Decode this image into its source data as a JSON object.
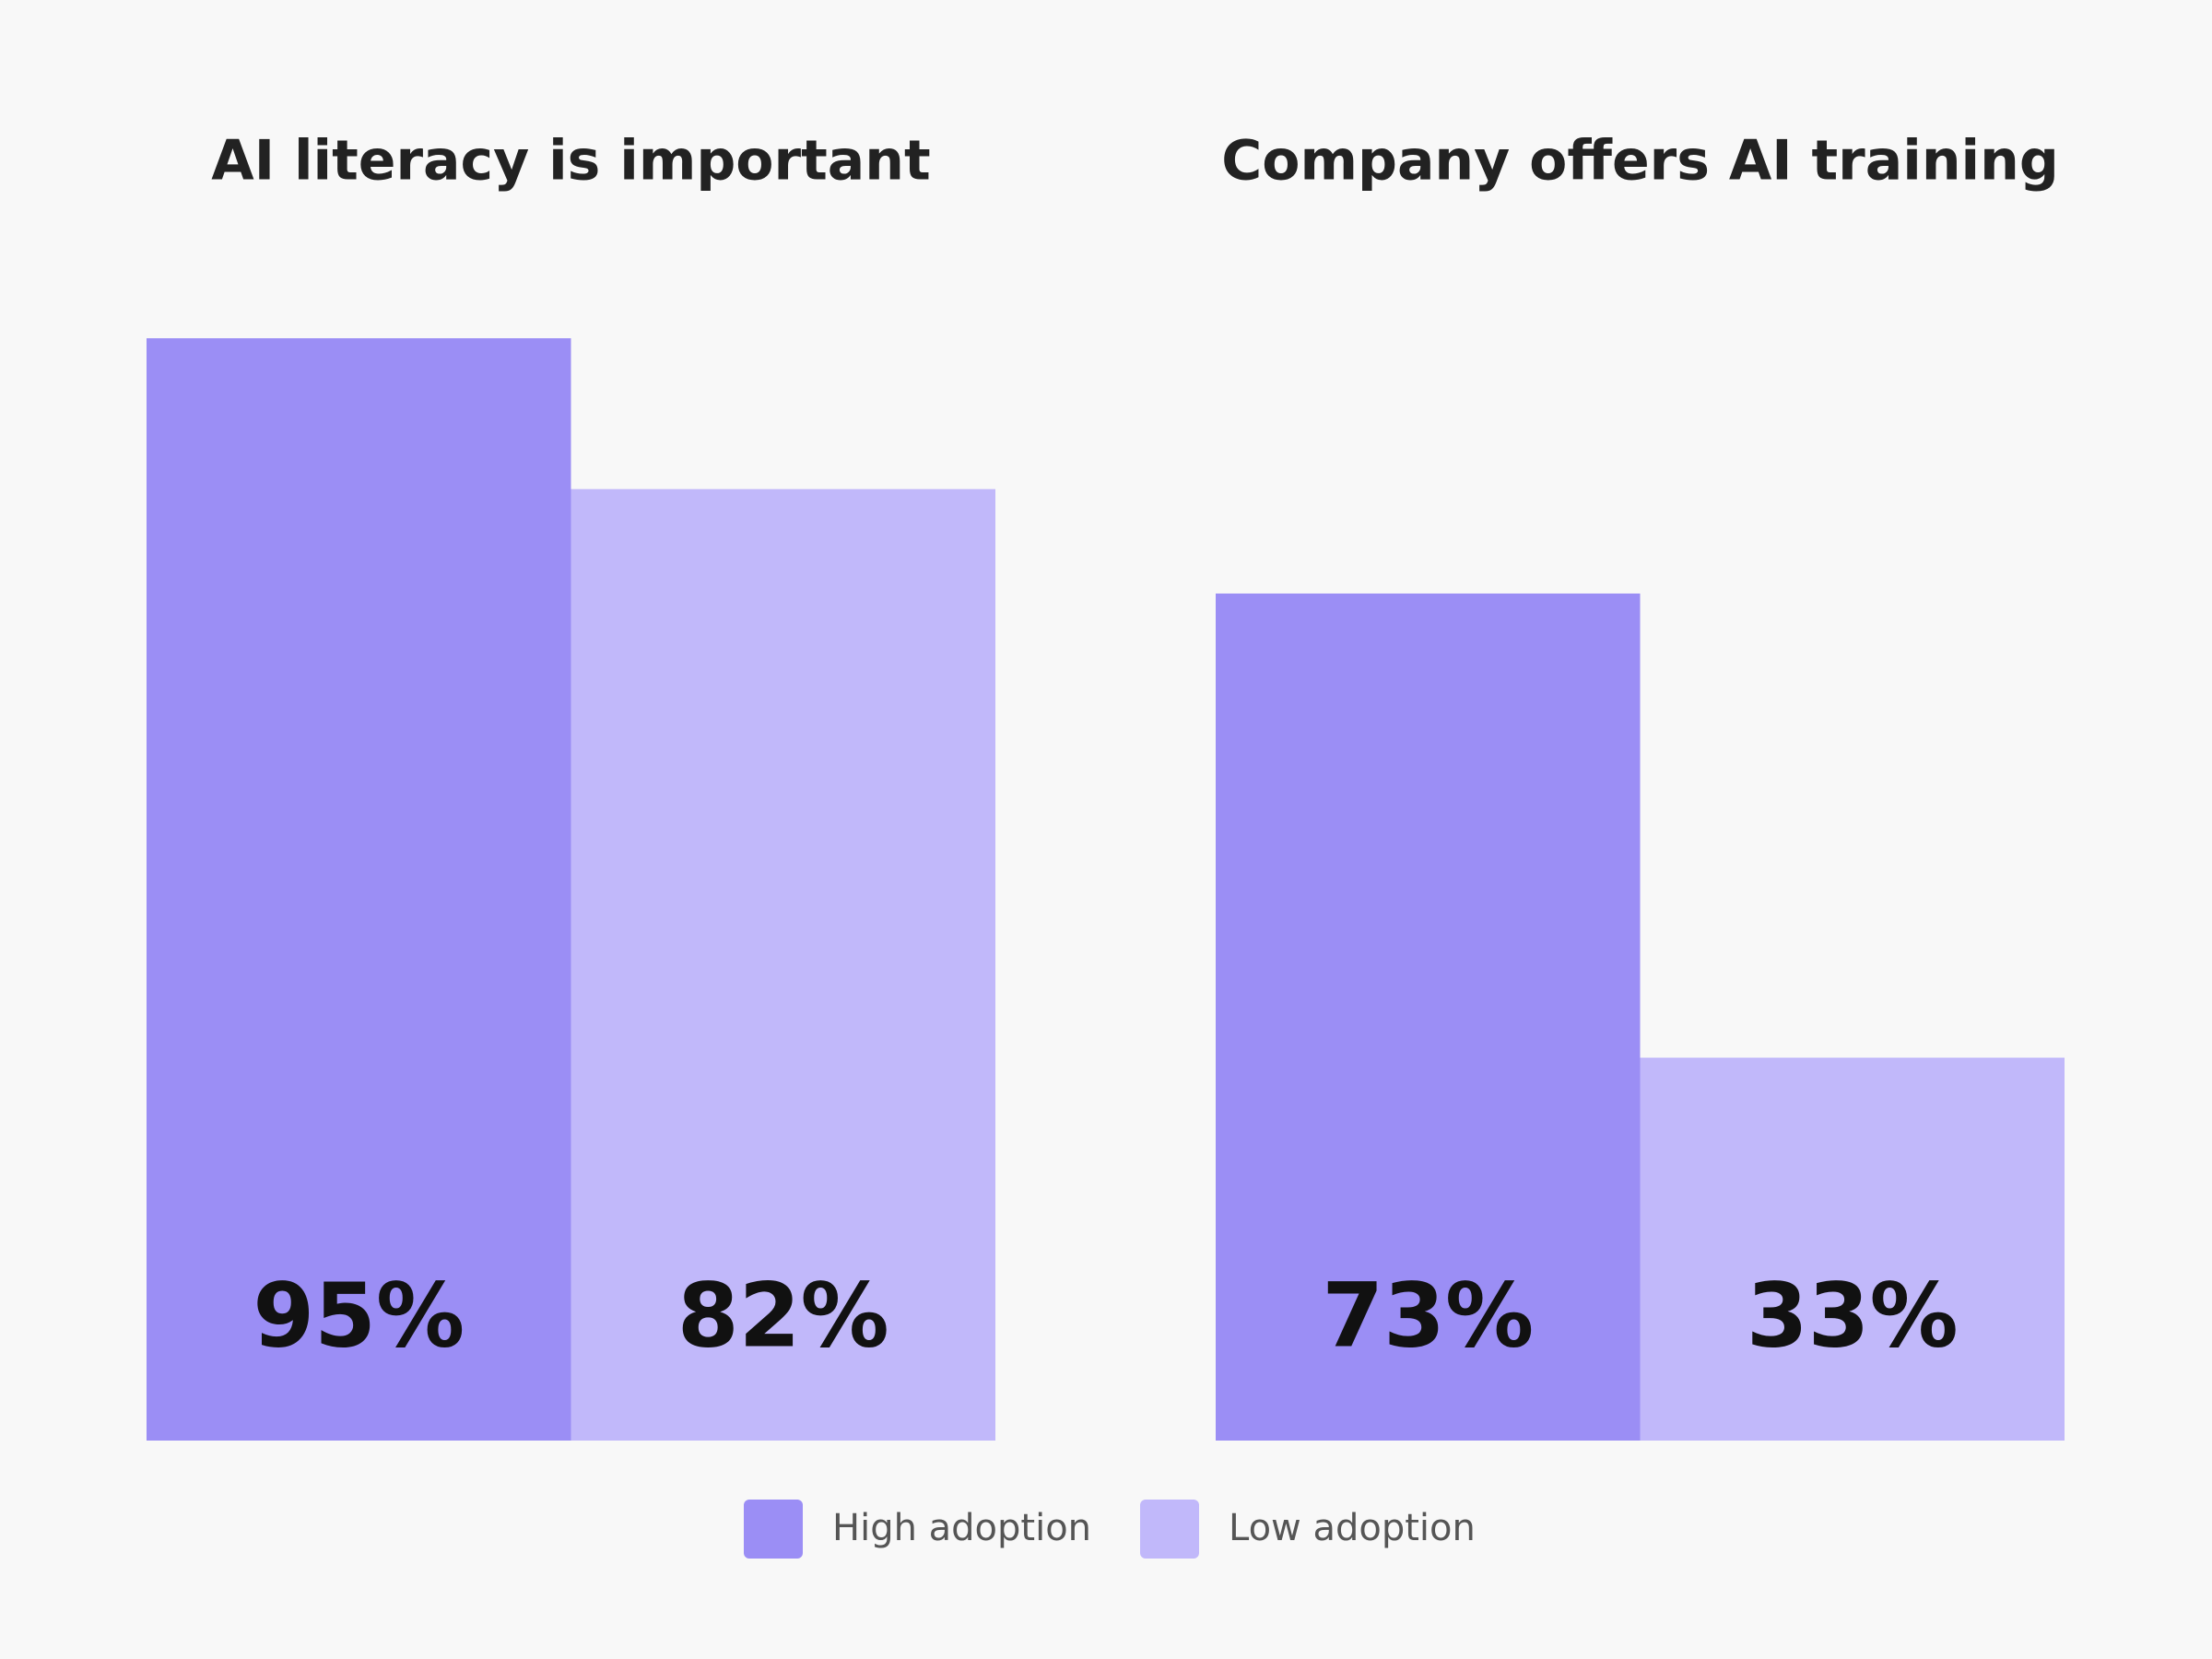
{
  "chart_data": {
    "type": "grouped_bar",
    "categories": [
      "AI literacy is important",
      "Company offers AI training"
    ],
    "series": [
      {
        "name": "High adoption",
        "color": "#9b8ef5",
        "values": [
          95,
          73
        ],
        "value_labels": [
          "95%",
          "73%"
        ]
      },
      {
        "name": "Low adoption",
        "color": "#c1b8fa",
        "values": [
          82,
          33
        ],
        "value_labels": [
          "82%",
          "33%"
        ]
      }
    ],
    "legend": "bottom"
  }
}
